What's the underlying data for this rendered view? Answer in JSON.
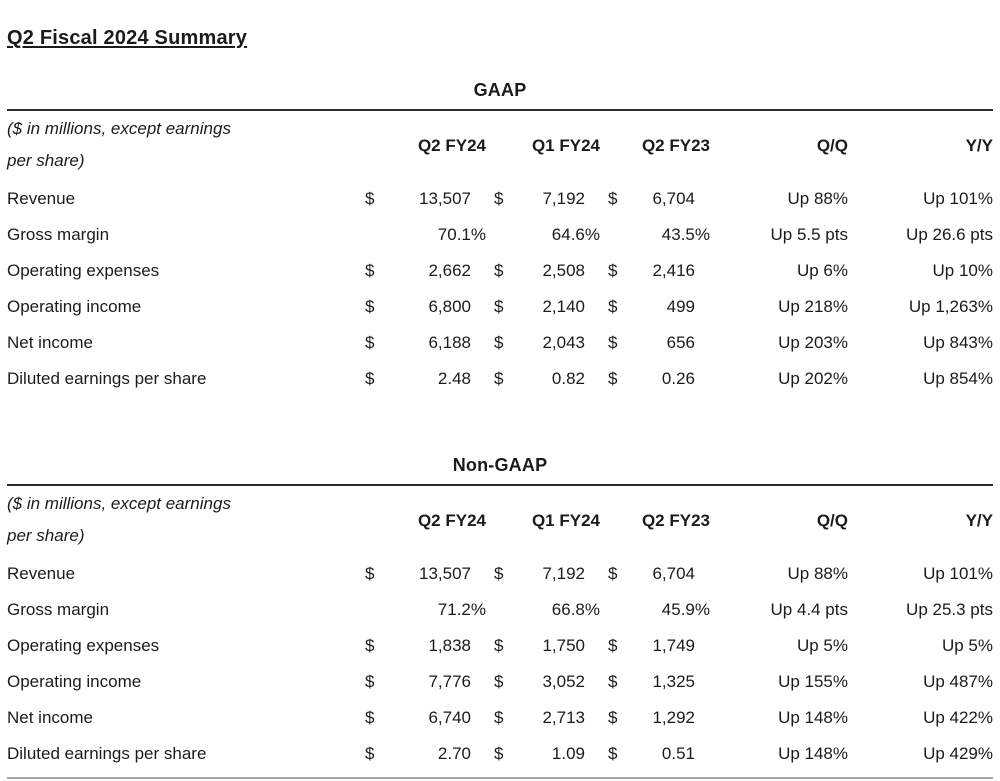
{
  "title": "Q2 Fiscal 2024 Summary",
  "currency_symbol": "$",
  "tables": [
    {
      "name": "GAAP",
      "caption_line1": "($ in millions, except earnings",
      "caption_line2": "per share)",
      "columns": [
        "Q2 FY24",
        "Q1 FY24",
        "Q2 FY23",
        "Q/Q",
        "Y/Y"
      ],
      "rows": [
        {
          "label": "Revenue",
          "q2fy24": "13,507",
          "q1fy24": "7,192",
          "q2fy23": "6,704",
          "qq": "Up 88%",
          "yy": "Up 101%"
        },
        {
          "label": "Gross margin",
          "q2fy24": "70.1%",
          "q1fy24": "64.6%",
          "q2fy23": "43.5%",
          "qq": "Up 5.5 pts",
          "yy": "Up 26.6 pts"
        },
        {
          "label": "Operating expenses",
          "q2fy24": "2,662",
          "q1fy24": "2,508",
          "q2fy23": "2,416",
          "qq": "Up 6%",
          "yy": "Up 10%"
        },
        {
          "label": "Operating income",
          "q2fy24": "6,800",
          "q1fy24": "2,140",
          "q2fy23": "499",
          "qq": "Up 218%",
          "yy": "Up 1,263%"
        },
        {
          "label": "Net income",
          "q2fy24": "6,188",
          "q1fy24": "2,043",
          "q2fy23": "656",
          "qq": "Up 203%",
          "yy": "Up 843%"
        },
        {
          "label": "Diluted earnings per share",
          "q2fy24": "2.48",
          "q1fy24": "0.82",
          "q2fy23": "0.26",
          "qq": "Up 202%",
          "yy": "Up 854%"
        }
      ]
    },
    {
      "name": "Non-GAAP",
      "caption_line1": "($ in millions, except earnings",
      "caption_line2": "per share)",
      "columns": [
        "Q2 FY24",
        "Q1 FY24",
        "Q2 FY23",
        "Q/Q",
        "Y/Y"
      ],
      "rows": [
        {
          "label": "Revenue",
          "q2fy24": "13,507",
          "q1fy24": "7,192",
          "q2fy23": "6,704",
          "qq": "Up 88%",
          "yy": "Up 101%"
        },
        {
          "label": "Gross margin",
          "q2fy24": "71.2%",
          "q1fy24": "66.8%",
          "q2fy23": "45.9%",
          "qq": "Up 4.4 pts",
          "yy": "Up 25.3 pts"
        },
        {
          "label": "Operating expenses",
          "q2fy24": "1,838",
          "q1fy24": "1,750",
          "q2fy23": "1,749",
          "qq": "Up 5%",
          "yy": "Up 5%"
        },
        {
          "label": "Operating income",
          "q2fy24": "7,776",
          "q1fy24": "3,052",
          "q2fy23": "1,325",
          "qq": "Up 155%",
          "yy": "Up 487%"
        },
        {
          "label": "Net income",
          "q2fy24": "6,740",
          "q1fy24": "2,713",
          "q2fy23": "1,292",
          "qq": "Up 148%",
          "yy": "Up 422%"
        },
        {
          "label": "Diluted earnings per share",
          "q2fy24": "2.70",
          "q1fy24": "1.09",
          "q2fy23": "0.51",
          "qq": "Up 148%",
          "yy": "Up 429%"
        }
      ]
    }
  ]
}
